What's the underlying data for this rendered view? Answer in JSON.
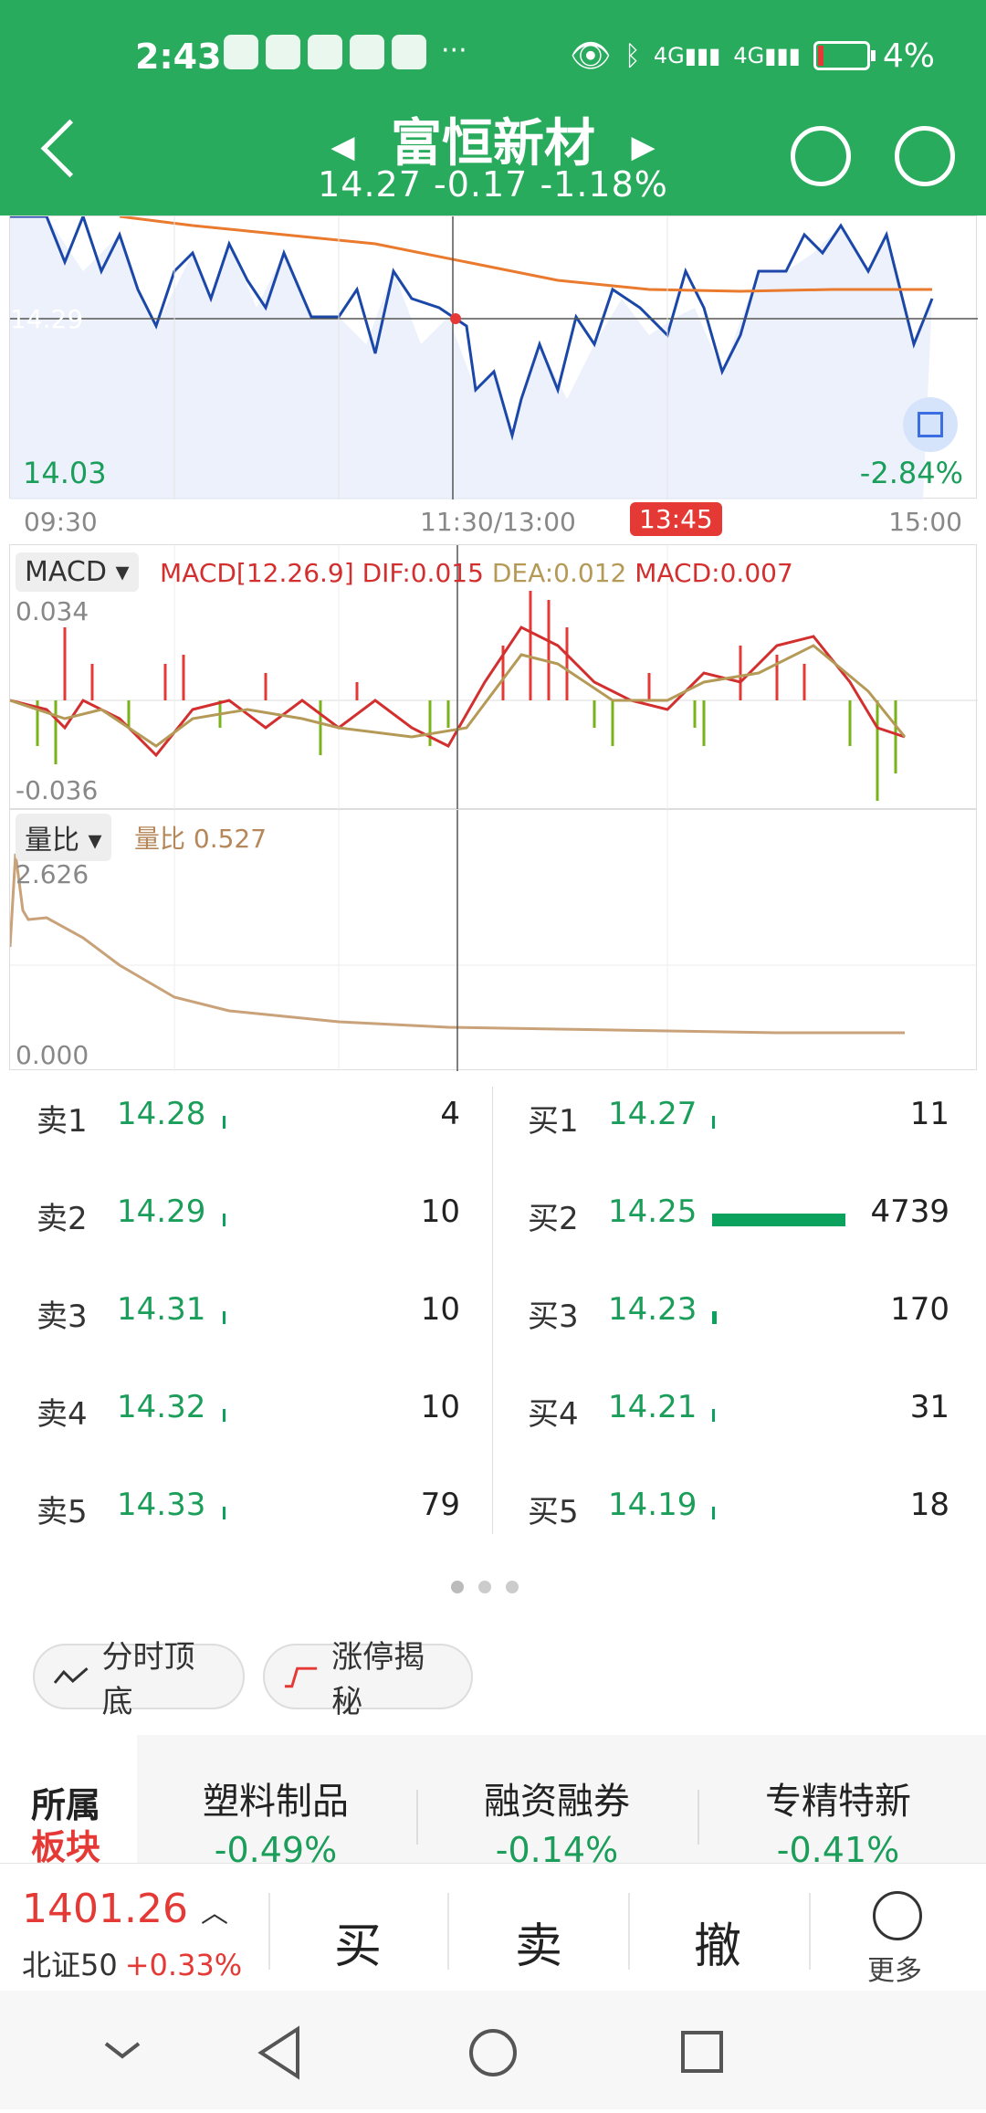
{
  "status": {
    "time": "2:43",
    "battery": "4%"
  },
  "header": {
    "title": "富恒新材",
    "price": "14.27",
    "change": "-0.17",
    "change_pct": "-1.18%"
  },
  "main_chart": {
    "low_label": "14.03",
    "low_pct": "-2.84%",
    "ref_label": "14.29",
    "time_start": "09:30",
    "time_mid": "11:30/13:00",
    "time_cursor": "13:45",
    "time_end": "15:00"
  },
  "macd": {
    "tag": "MACD",
    "params": "MACD[12.26.9]",
    "dif": "DIF:0.015",
    "dea": "DEA:0.012",
    "macd": "MACD:0.007",
    "max": "0.034",
    "min": "-0.036"
  },
  "volratio": {
    "tag": "量比",
    "label": "量比 0.527",
    "max": "2.626",
    "min": "0.000"
  },
  "orderbook": {
    "sell": [
      {
        "label": "卖1",
        "price": "14.28",
        "vol": "4"
      },
      {
        "label": "卖2",
        "price": "14.29",
        "vol": "10"
      },
      {
        "label": "卖3",
        "price": "14.31",
        "vol": "10"
      },
      {
        "label": "卖4",
        "price": "14.32",
        "vol": "10"
      },
      {
        "label": "卖5",
        "price": "14.33",
        "vol": "79"
      }
    ],
    "buy": [
      {
        "label": "买1",
        "price": "14.27",
        "vol": "11"
      },
      {
        "label": "买2",
        "price": "14.25",
        "vol": "4739"
      },
      {
        "label": "买3",
        "price": "14.23",
        "vol": "170"
      },
      {
        "label": "买4",
        "price": "14.21",
        "vol": "31"
      },
      {
        "label": "买5",
        "price": "14.19",
        "vol": "18"
      }
    ]
  },
  "pills": {
    "a": "分时顶底",
    "b": "涨停揭秘"
  },
  "sectors": {
    "first_a": "所属",
    "first_b": "板块",
    "items": [
      {
        "name": "塑料制品",
        "pct": "-0.49%"
      },
      {
        "name": "融资融券",
        "pct": "-0.14%"
      },
      {
        "name": "专精特新",
        "pct": "-0.41%"
      }
    ]
  },
  "bottom": {
    "index_value": "1401.26",
    "index_name": "北证50",
    "index_change": "+0.33%",
    "buy": "买",
    "sell": "卖",
    "cancel": "撤",
    "more": "更多"
  },
  "colors": {
    "green": "#28ab5c",
    "red": "#e53935",
    "price_green": "#1b9e5a"
  }
}
